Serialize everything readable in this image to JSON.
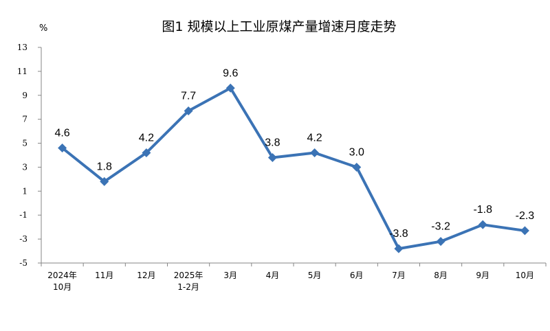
{
  "chart_data": {
    "type": "line",
    "title": "图1  规模以上工业原煤产量增速月度走势",
    "unit_label": "%",
    "categories": [
      [
        "2024年",
        "10月"
      ],
      [
        "11月"
      ],
      [
        "12月"
      ],
      [
        "2025年",
        "1-2月"
      ],
      [
        "3月"
      ],
      [
        "4月"
      ],
      [
        "5月"
      ],
      [
        "6月"
      ],
      [
        "7月"
      ],
      [
        "8月"
      ],
      [
        "9月"
      ],
      [
        "10月"
      ]
    ],
    "values": [
      4.6,
      1.8,
      4.2,
      7.7,
      9.6,
      3.8,
      4.2,
      3.0,
      -3.8,
      -3.2,
      -1.8,
      -2.3
    ],
    "data_labels": [
      "4.6",
      "1.8",
      "4.2",
      "7.7",
      "9.6",
      "3.8",
      "4.2",
      "3.0",
      "-3.8",
      "-3.2",
      "-1.8",
      "-2.3"
    ],
    "yticks": [
      13,
      11,
      9,
      7,
      5,
      3,
      1,
      -1,
      -3,
      -5
    ],
    "ylim": [
      -5,
      13
    ],
    "grid": false,
    "legend": "none",
    "line_color": "#3B73B5",
    "marker": "diamond"
  }
}
